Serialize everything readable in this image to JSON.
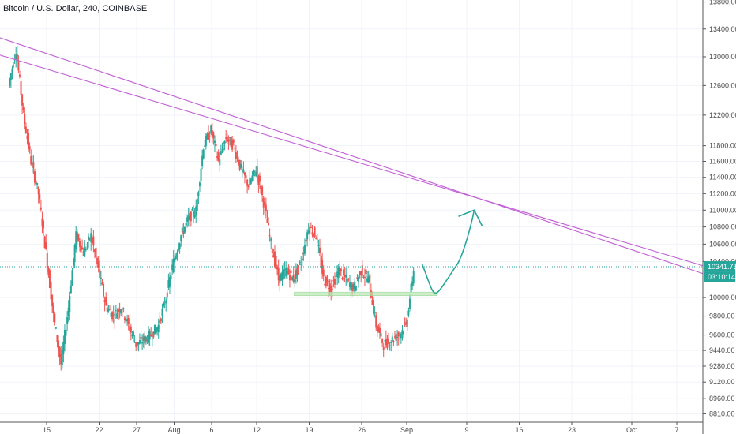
{
  "header": {
    "title": "Bitcoin / U.S. Dollar, 240, COINBASE"
  },
  "colors": {
    "up": "#26a69a",
    "down": "#ef5350",
    "trendline": "#c25fd6",
    "current_price_line": "#26a69a",
    "support_zone": "#b9e6b3",
    "arrow": "#26a69a",
    "grid": "#f0f3fa"
  },
  "chart_data": {
    "type": "candlestick",
    "title": "Bitcoin / U.S. Dollar, 240, COINBASE",
    "price_axis": {
      "ticks": [
        "13800.00",
        "13400.00",
        "13000.00",
        "12600.00",
        "12200.00",
        "11800.00",
        "11600.00",
        "11400.00",
        "11200.00",
        "11000.00",
        "10800.00",
        "10600.00",
        "10400.00",
        "10000.00",
        "9800.00",
        "9600.00",
        "9440.00",
        "9280.00",
        "9120.00",
        "8960.00",
        "8810.00"
      ],
      "scale": "log"
    },
    "time_axis": {
      "ticks": [
        "15",
        "22",
        "27",
        "Aug",
        "6",
        "12",
        "19",
        "26",
        "Sep",
        "9",
        "16",
        "23",
        "Oct",
        "7"
      ]
    },
    "current_price": {
      "value": "10341.73",
      "countdown": "03:10:14"
    },
    "grid": true,
    "approx_ohlc_path": [
      {
        "date": "Jul 10",
        "price": 12600
      },
      {
        "date": "Jul 11",
        "price": 13100
      },
      {
        "date": "Jul 12",
        "price": 12200
      },
      {
        "date": "Jul 13",
        "price": 11600
      },
      {
        "date": "Jul 14",
        "price": 11200
      },
      {
        "date": "Jul 15",
        "price": 10500
      },
      {
        "date": "Jul 16",
        "price": 9800
      },
      {
        "date": "Jul 17",
        "price": 9300
      },
      {
        "date": "Jul 18",
        "price": 9900
      },
      {
        "date": "Jul 19",
        "price": 10700
      },
      {
        "date": "Jul 20",
        "price": 10500
      },
      {
        "date": "Jul 21",
        "price": 10700
      },
      {
        "date": "Jul 22",
        "price": 10300
      },
      {
        "date": "Jul 23",
        "price": 9900
      },
      {
        "date": "Jul 24",
        "price": 9800
      },
      {
        "date": "Jul 25",
        "price": 9900
      },
      {
        "date": "Jul 26",
        "price": 9700
      },
      {
        "date": "Jul 27",
        "price": 9500
      },
      {
        "date": "Jul 28",
        "price": 9550
      },
      {
        "date": "Jul 29",
        "price": 9600
      },
      {
        "date": "Jul 30",
        "price": 9700
      },
      {
        "date": "Jul 31",
        "price": 10000
      },
      {
        "date": "Aug 1",
        "price": 10400
      },
      {
        "date": "Aug 2",
        "price": 10700
      },
      {
        "date": "Aug 3",
        "price": 10900
      },
      {
        "date": "Aug 4",
        "price": 11000
      },
      {
        "date": "Aug 5",
        "price": 11800
      },
      {
        "date": "Aug 6",
        "price": 12000
      },
      {
        "date": "Aug 7",
        "price": 11600
      },
      {
        "date": "Aug 8",
        "price": 11900
      },
      {
        "date": "Aug 9",
        "price": 11800
      },
      {
        "date": "Aug 10",
        "price": 11500
      },
      {
        "date": "Aug 11",
        "price": 11300
      },
      {
        "date": "Aug 12",
        "price": 11500
      },
      {
        "date": "Aug 13",
        "price": 11100
      },
      {
        "date": "Aug 14",
        "price": 10600
      },
      {
        "date": "Aug 15",
        "price": 10200
      },
      {
        "date": "Aug 16",
        "price": 10300
      },
      {
        "date": "Aug 17",
        "price": 10200
      },
      {
        "date": "Aug 18",
        "price": 10400
      },
      {
        "date": "Aug 19",
        "price": 10800
      },
      {
        "date": "Aug 20",
        "price": 10700
      },
      {
        "date": "Aug 21",
        "price": 10200
      },
      {
        "date": "Aug 22",
        "price": 10100
      },
      {
        "date": "Aug 23",
        "price": 10300
      },
      {
        "date": "Aug 24",
        "price": 10200
      },
      {
        "date": "Aug 25",
        "price": 10100
      },
      {
        "date": "Aug 26",
        "price": 10300
      },
      {
        "date": "Aug 27",
        "price": 10200
      },
      {
        "date": "Aug 28",
        "price": 9700
      },
      {
        "date": "Aug 29",
        "price": 9500
      },
      {
        "date": "Aug 30",
        "price": 9550
      },
      {
        "date": "Aug 31",
        "price": 9600
      },
      {
        "date": "Sep 1",
        "price": 9700
      },
      {
        "date": "Sep 2",
        "price": 10300
      }
    ],
    "annotations": [
      {
        "type": "trendline",
        "from": {
          "date": "Jul 8",
          "price": 13300
        },
        "to": {
          "date": "Oct 11",
          "price": 10250
        }
      },
      {
        "type": "trendline",
        "from": {
          "date": "Jul 8",
          "price": 13050
        },
        "to": {
          "date": "Oct 11",
          "price": 10340
        }
      },
      {
        "type": "support_zone",
        "from_date": "Aug 17",
        "to_date": "Sep 5",
        "low": 10020,
        "high": 10060
      },
      {
        "type": "projection_arrow",
        "points": [
          {
            "date": "Sep 3",
            "price": 10380
          },
          {
            "date": "Sep 5",
            "price": 10050
          },
          {
            "date": "Sep 7",
            "price": 10250
          },
          {
            "date": "Sep 10",
            "price": 11000
          }
        ]
      }
    ]
  }
}
